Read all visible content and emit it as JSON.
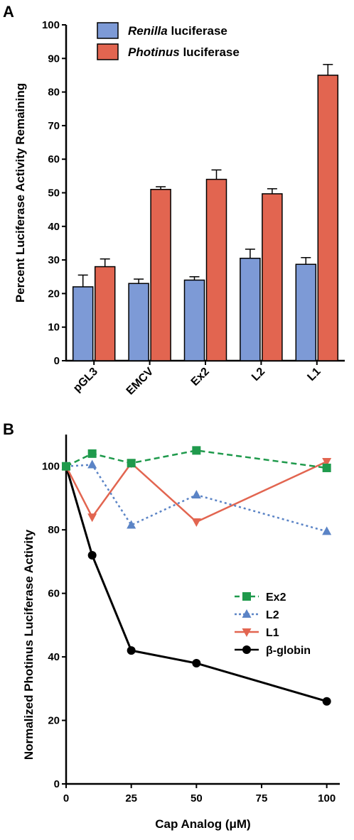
{
  "panels": {
    "a_label": "A",
    "b_label": "B"
  },
  "chart_data": [
    {
      "type": "bar",
      "panel": "A",
      "ylabel": "Percent Luciferase Activity Remaining",
      "xlabel": "",
      "ylim": [
        0,
        100
      ],
      "yticks": [
        0,
        10,
        20,
        30,
        40,
        50,
        60,
        70,
        80,
        90,
        100
      ],
      "categories": [
        "pGL3",
        "EMCV",
        "Ex2",
        "L2",
        "L1"
      ],
      "legend_position": "top-left",
      "series": [
        {
          "name_italic": "Renilla",
          "name_rest": " luciferase",
          "color": "#7d9ad6",
          "values": [
            22,
            23,
            24,
            30.5,
            28.7
          ],
          "errors": [
            3.5,
            1.3,
            1.0,
            2.7,
            2.0
          ]
        },
        {
          "name_italic": "Photinus",
          "name_rest": " luciferase",
          "color": "#e26550",
          "values": [
            28,
            51,
            54,
            49.7,
            85
          ],
          "errors": [
            2.3,
            0.8,
            2.8,
            1.5,
            3.2
          ]
        }
      ]
    },
    {
      "type": "line",
      "panel": "B",
      "ylabel": "Normalized Photinus Luciferase Activity",
      "xlabel": "Cap Analog (μM)",
      "xlim": [
        0,
        105
      ],
      "ylim": [
        0,
        110
      ],
      "xticks": [
        0,
        25,
        50,
        75,
        100
      ],
      "yticks": [
        0,
        20,
        40,
        60,
        80,
        100
      ],
      "x": [
        0,
        10,
        25,
        50,
        100
      ],
      "legend_position": "right",
      "series": [
        {
          "name": "Ex2",
          "color": "#1f9a4c",
          "marker": "square",
          "dash": "8,5",
          "values": [
            100,
            104,
            101,
            105,
            99.5
          ]
        },
        {
          "name": "L2",
          "color": "#5b84c6",
          "marker": "triangle-up",
          "dash": "3,4",
          "values": [
            100,
            100.5,
            81.5,
            91,
            79.5
          ]
        },
        {
          "name": "L1",
          "color": "#e26550",
          "marker": "triangle-down",
          "dash": "",
          "values": [
            100,
            84,
            101,
            82.5,
            101.5
          ]
        },
        {
          "name": "β-globin",
          "color": "#000000",
          "marker": "circle",
          "dash": "",
          "values": [
            100,
            72,
            42,
            38,
            26
          ]
        }
      ]
    }
  ]
}
